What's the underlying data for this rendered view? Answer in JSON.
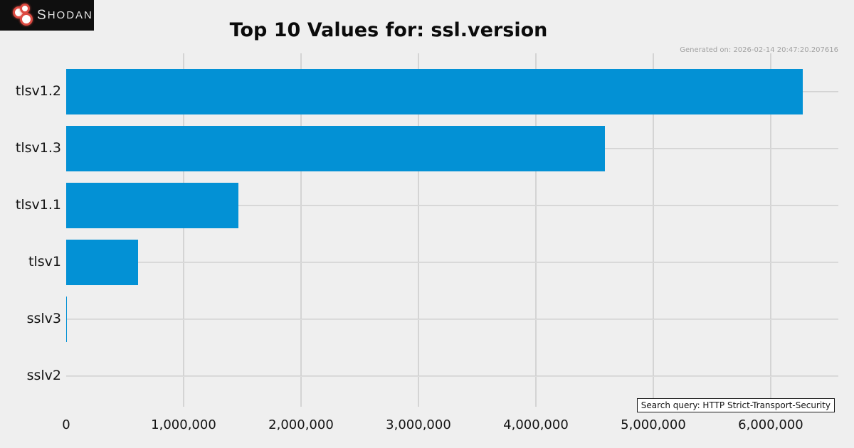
{
  "logo": {
    "brand_s": "S",
    "brand_rest": "HODAN"
  },
  "generated_on": "Generated on: 2026-02-14 20:47:20.207616",
  "search_query_label": "Search query: HTTP Strict-Transport-Security",
  "colors": {
    "background": "#efefef",
    "bar": "#0391d5",
    "grid": "#d4d4d4",
    "title_text": "#0b0b0b",
    "axis_text": "#141414",
    "generated_text": "#a2a2a2",
    "logo_background": "#0f0f0f",
    "logo_red": "#dd4b42",
    "logo_text": "#e6e6e6",
    "annotation_border": "#1a1a1a",
    "annotation_background": "#ffffff"
  },
  "chart_data": {
    "type": "bar",
    "orientation": "horizontal",
    "title": "Top 10 Values for: ssl.version",
    "categories": [
      "tlsv1.2",
      "tlsv1.3",
      "tlsv1.1",
      "tlsv1",
      "sslv3",
      "sslv2"
    ],
    "values": [
      6270000,
      4590000,
      1465000,
      612000,
      3000,
      300
    ],
    "xlabel": "",
    "ylabel": "",
    "xlim": [
      0,
      6576000
    ],
    "xticks": [
      0,
      1000000,
      2000000,
      3000000,
      4000000,
      5000000,
      6000000
    ],
    "xtick_labels": [
      "0",
      "1,000,000",
      "2,000,000",
      "3,000,000",
      "4,000,000",
      "5,000,000",
      "6,000,000"
    ],
    "grid": true,
    "legend": false
  }
}
